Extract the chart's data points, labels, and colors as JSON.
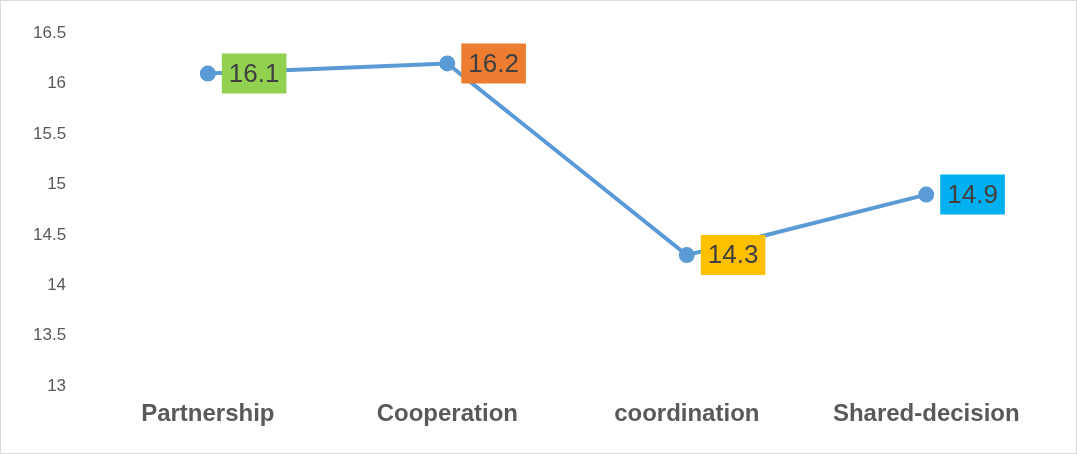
{
  "chart_data": {
    "type": "line",
    "categories": [
      "Partnership",
      "Cooperation",
      "coordination",
      "Shared-decision"
    ],
    "series": [
      {
        "color": "#5b9bd5",
        "values": [
          16.1,
          16.2,
          14.3,
          14.9
        ]
      }
    ],
    "colors": [
      "#92d050",
      "#ed7d31",
      "#ffc000",
      "#00b0f0"
    ],
    "ylim": [
      13,
      16.5
    ],
    "yticks": [
      13,
      13.5,
      14,
      14.5,
      15,
      15.5,
      16,
      16.5
    ],
    "grid": false,
    "legend": false,
    "marker": "circle",
    "line_style": "solid",
    "data_labels": true
  }
}
